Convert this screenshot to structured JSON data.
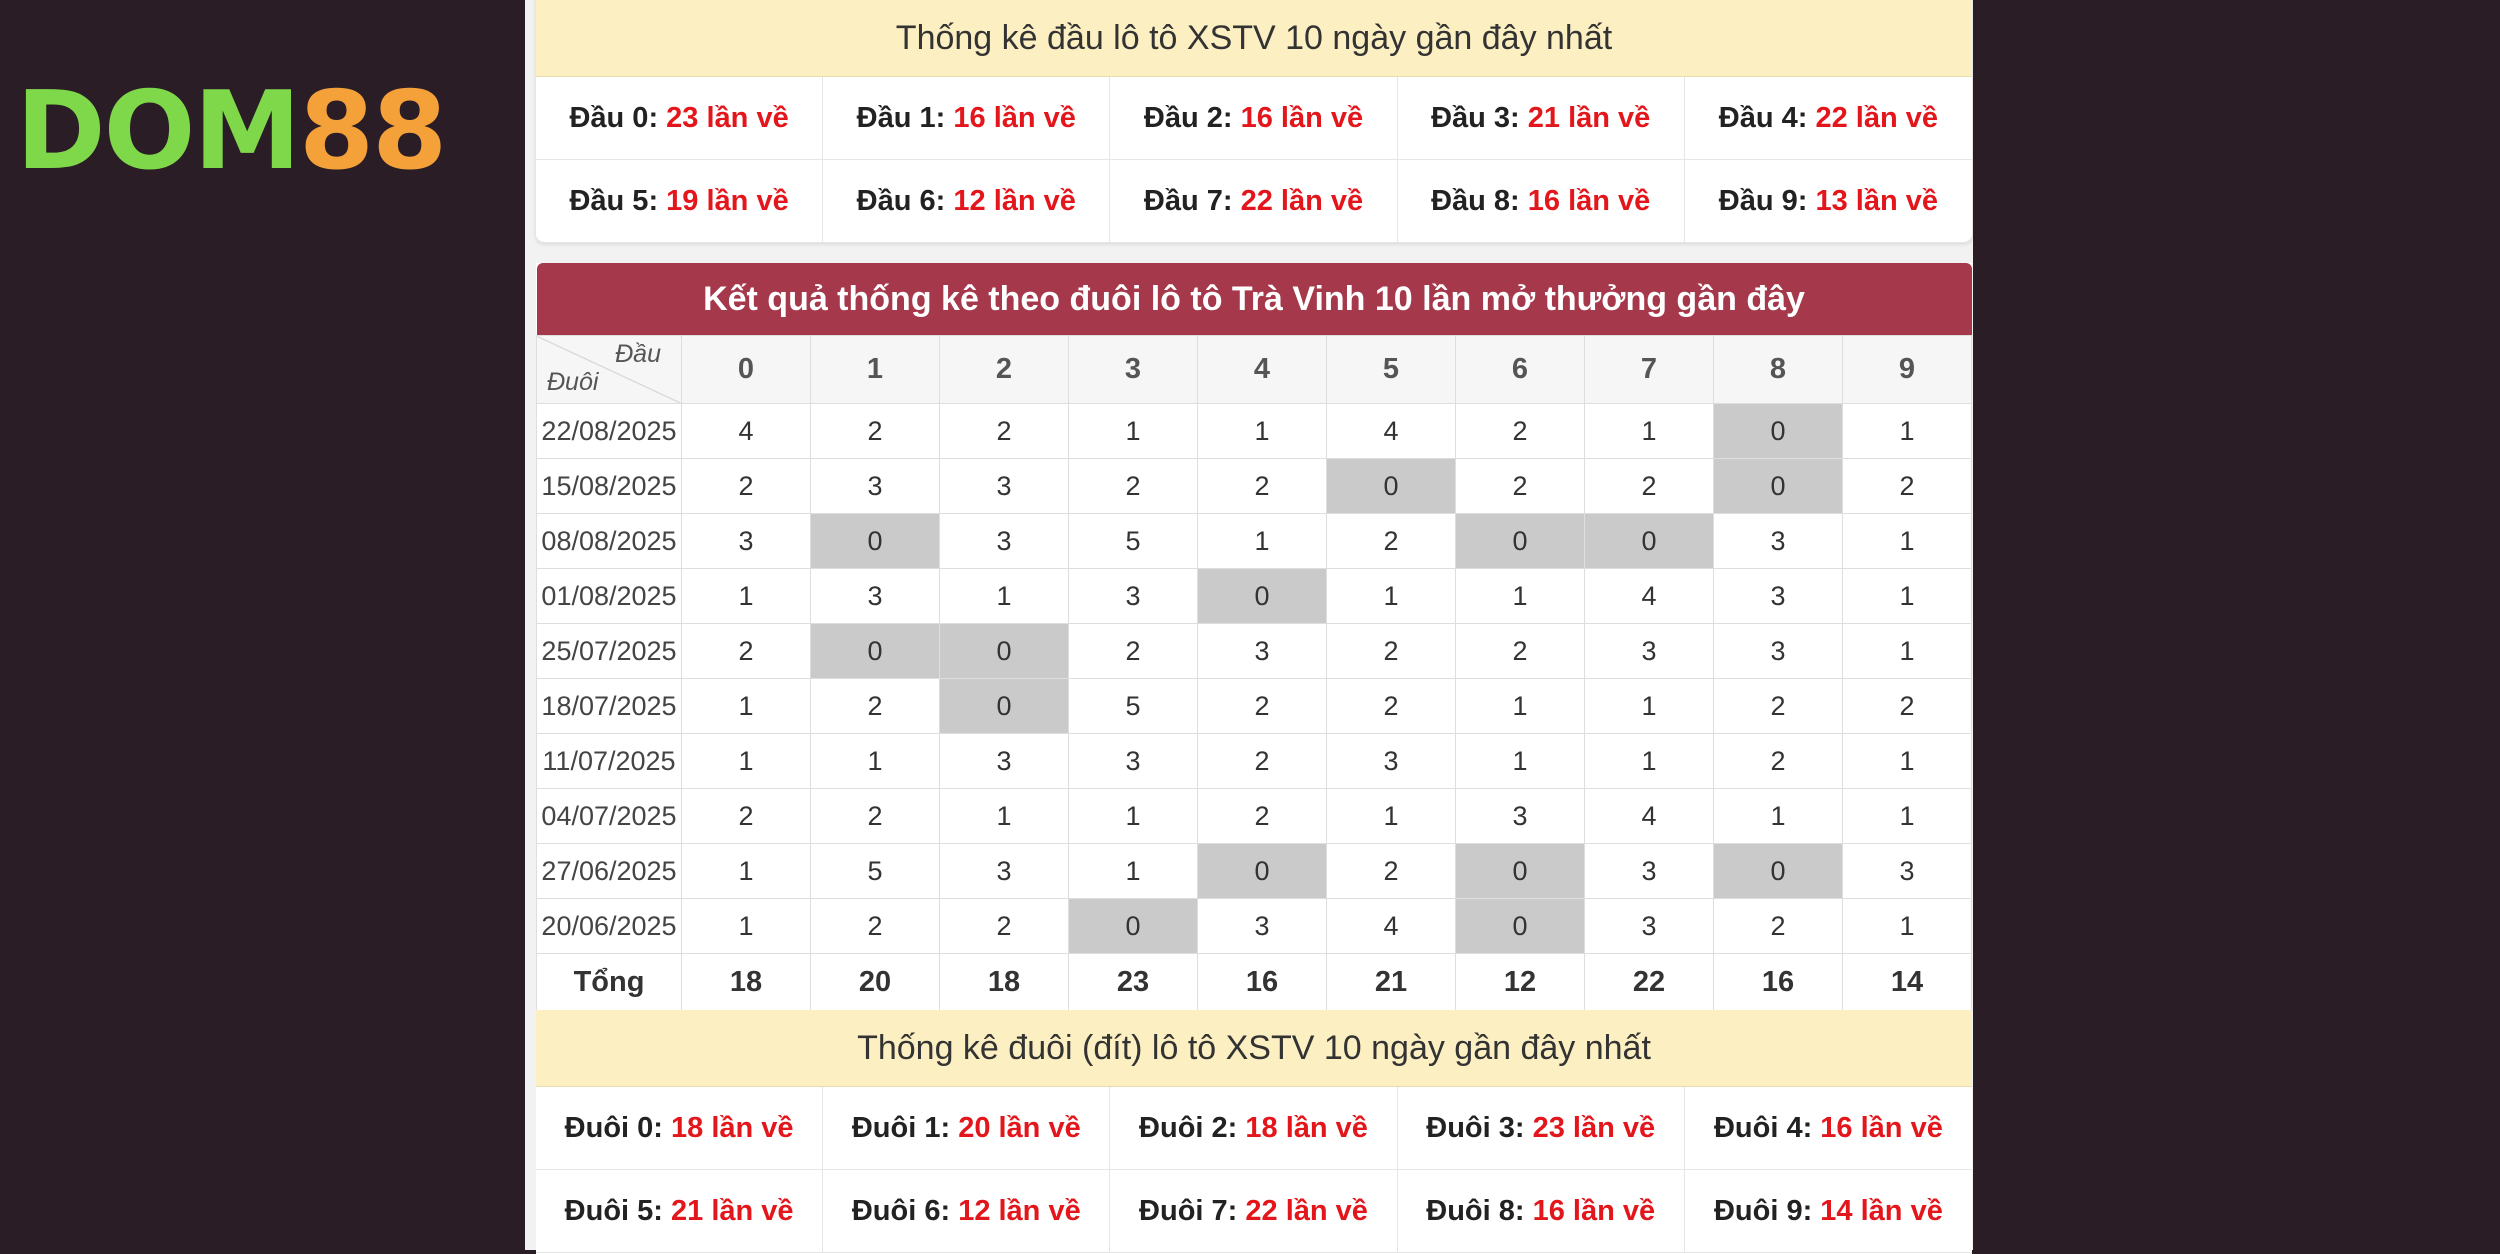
{
  "logo": {
    "part1": "DOM",
    "part2": "88"
  },
  "colors": {
    "background": "#2a1d25",
    "header_red": "#a5384b",
    "yellow_head": "#fcefc2",
    "count_red": "#e3161c",
    "zero_cell": "#cacaca",
    "logo_green": "#7fd84a",
    "logo_orange": "#f5a13a"
  },
  "dau_stats": {
    "title": "Thống kê đầu lô tô XSTV 10 ngày gần đây nhất",
    "items": [
      {
        "label": "Đầu 0:",
        "count": "23 lần về"
      },
      {
        "label": "Đầu 1:",
        "count": "16 lần về"
      },
      {
        "label": "Đầu 2:",
        "count": "16 lần về"
      },
      {
        "label": "Đầu 3:",
        "count": "21 lần về"
      },
      {
        "label": "Đầu 4:",
        "count": "22 lần về"
      },
      {
        "label": "Đầu 5:",
        "count": "19 lần về"
      },
      {
        "label": "Đầu 6:",
        "count": "12 lần về"
      },
      {
        "label": "Đầu 7:",
        "count": "22 lần về"
      },
      {
        "label": "Đầu 8:",
        "count": "16 lần về"
      },
      {
        "label": "Đầu 9:",
        "count": "13 lần về"
      }
    ]
  },
  "result_table": {
    "title": "Kết quả thống kê theo đuôi lô tô Trà Vinh 10 lần mở thưởng gần đây",
    "corner_top": "Đầu",
    "corner_bottom": "Đuôi",
    "columns": [
      "0",
      "1",
      "2",
      "3",
      "4",
      "5",
      "6",
      "7",
      "8",
      "9"
    ],
    "rows": [
      {
        "date": "22/08/2025",
        "values": [
          "4",
          "2",
          "2",
          "1",
          "1",
          "4",
          "2",
          "1",
          "0",
          "1"
        ]
      },
      {
        "date": "15/08/2025",
        "values": [
          "2",
          "3",
          "3",
          "2",
          "2",
          "0",
          "2",
          "2",
          "0",
          "2"
        ]
      },
      {
        "date": "08/08/2025",
        "values": [
          "3",
          "0",
          "3",
          "5",
          "1",
          "2",
          "0",
          "0",
          "3",
          "1"
        ]
      },
      {
        "date": "01/08/2025",
        "values": [
          "1",
          "3",
          "1",
          "3",
          "0",
          "1",
          "1",
          "4",
          "3",
          "1"
        ]
      },
      {
        "date": "25/07/2025",
        "values": [
          "2",
          "0",
          "0",
          "2",
          "3",
          "2",
          "2",
          "3",
          "3",
          "1"
        ]
      },
      {
        "date": "18/07/2025",
        "values": [
          "1",
          "2",
          "0",
          "5",
          "2",
          "2",
          "1",
          "1",
          "2",
          "2"
        ]
      },
      {
        "date": "11/07/2025",
        "values": [
          "1",
          "1",
          "3",
          "3",
          "2",
          "3",
          "1",
          "1",
          "2",
          "1"
        ]
      },
      {
        "date": "04/07/2025",
        "values": [
          "2",
          "2",
          "1",
          "1",
          "2",
          "1",
          "3",
          "4",
          "1",
          "1"
        ]
      },
      {
        "date": "27/06/2025",
        "values": [
          "1",
          "5",
          "3",
          "1",
          "0",
          "2",
          "0",
          "3",
          "0",
          "3"
        ]
      },
      {
        "date": "20/06/2025",
        "values": [
          "1",
          "2",
          "2",
          "0",
          "3",
          "4",
          "0",
          "3",
          "2",
          "1"
        ]
      }
    ],
    "total_label": "Tổng",
    "totals": [
      "18",
      "20",
      "18",
      "23",
      "16",
      "21",
      "12",
      "22",
      "16",
      "14"
    ]
  },
  "duoi_stats": {
    "title": "Thống kê đuôi (đít) lô tô XSTV 10 ngày gần đây nhất",
    "items": [
      {
        "label": "Đuôi 0:",
        "count": "18 lần về"
      },
      {
        "label": "Đuôi 1:",
        "count": "20 lần về"
      },
      {
        "label": "Đuôi 2:",
        "count": "18 lần về"
      },
      {
        "label": "Đuôi 3:",
        "count": "23 lần về"
      },
      {
        "label": "Đuôi 4:",
        "count": "16 lần về"
      },
      {
        "label": "Đuôi 5:",
        "count": "21 lần về"
      },
      {
        "label": "Đuôi 6:",
        "count": "12 lần về"
      },
      {
        "label": "Đuôi 7:",
        "count": "22 lần về"
      },
      {
        "label": "Đuôi 8:",
        "count": "16 lần về"
      },
      {
        "label": "Đuôi 9:",
        "count": "14 lần về"
      }
    ]
  }
}
